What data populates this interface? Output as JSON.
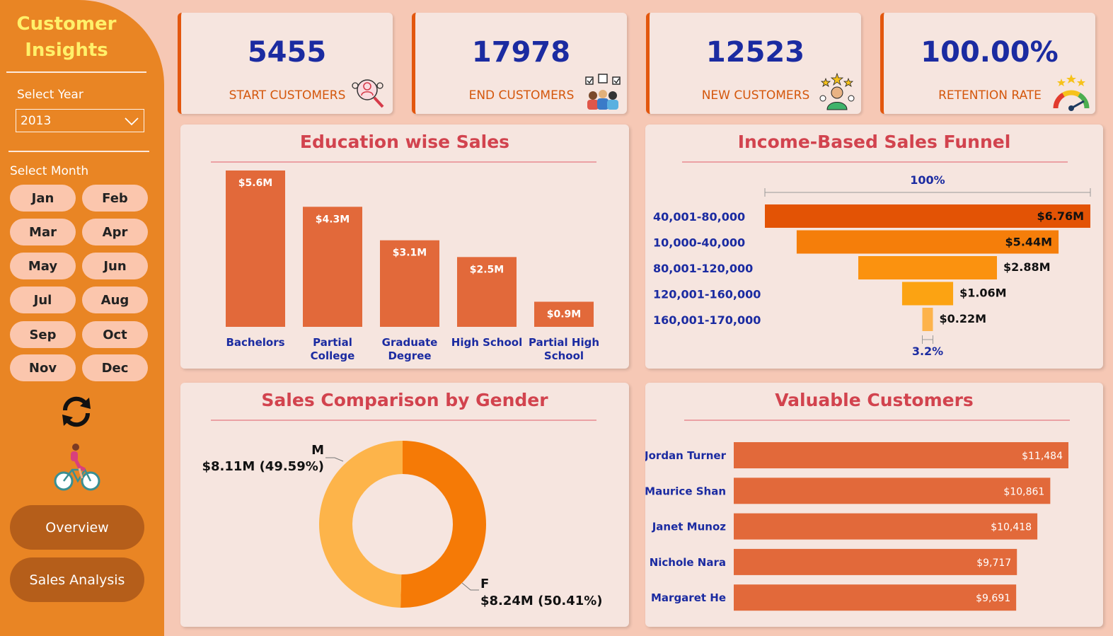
{
  "sidebar": {
    "title_line1": "Customer",
    "title_line2": "Insights",
    "year_label": "Select Year",
    "year_value": "2013",
    "month_label": "Select Month",
    "months": [
      "Jan",
      "Feb",
      "Mar",
      "Apr",
      "May",
      "Jun",
      "Jul",
      "Aug",
      "Sep",
      "Oct",
      "Nov",
      "Dec"
    ],
    "nav": [
      "Overview",
      "Sales Analysis"
    ]
  },
  "kpis": [
    {
      "value": "5455",
      "label": "START CUSTOMERS",
      "icon": "search-customer-icon"
    },
    {
      "value": "17978",
      "label": "END CUSTOMERS",
      "icon": "group-checklist-icon"
    },
    {
      "value": "12523",
      "label": "NEW CUSTOMERS",
      "icon": "star-customer-icon"
    },
    {
      "value": "100.00%",
      "label": "RETENTION RATE",
      "icon": "gauge-icon"
    }
  ],
  "panels": {
    "education": "Education wise Sales",
    "funnel": "Income-Based Sales Funnel",
    "gender": "Sales Comparison by Gender",
    "customers": "Valuable Customers"
  },
  "colors": {
    "bar": "#e2693a",
    "funnel": [
      "#e35305",
      "#f57e0a",
      "#fb920f",
      "#fca312",
      "#fdb34c"
    ],
    "donut_m": "#fdb44a",
    "donut_f": "#f57a06",
    "title": "#d2434e",
    "axis_text": "#1b2ba1"
  },
  "chart_data": [
    {
      "type": "bar",
      "title": "Education wise Sales",
      "categories": [
        "Bachelors",
        "Partial College",
        "Graduate Degree",
        "High School",
        "Partial High School"
      ],
      "values": [
        5.6,
        4.3,
        3.1,
        2.5,
        0.9
      ],
      "labels": [
        "$5.6M",
        "$4.3M",
        "$3.1M",
        "$2.5M",
        "$0.9M"
      ],
      "ylim": [
        0,
        5.6
      ]
    },
    {
      "type": "bar",
      "title": "Income-Based Sales Funnel",
      "categories": [
        "40,001-80,000",
        "10,000-40,000",
        "80,001-120,000",
        "120,001-160,000",
        "160,001-170,000"
      ],
      "values": [
        6.76,
        5.44,
        2.88,
        1.06,
        0.22
      ],
      "labels": [
        "$6.76M",
        "$5.44M",
        "$2.88M",
        "$1.06M",
        "$0.22M"
      ],
      "top_percent": "100%",
      "bottom_percent": "3.2%"
    },
    {
      "type": "pie",
      "title": "Sales Comparison by Gender",
      "categories": [
        "M",
        "F"
      ],
      "values": [
        8.11,
        8.24
      ],
      "labels": [
        "$8.11M (49.59%)",
        "$8.24M (50.41%)"
      ]
    },
    {
      "type": "bar",
      "title": "Valuable Customers",
      "categories": [
        "Jordan Turner",
        "Maurice Shan",
        "Janet Munoz",
        "Nichole Nara",
        "Margaret He"
      ],
      "values": [
        11484,
        10861,
        10418,
        9717,
        9691
      ],
      "labels": [
        "$11,484",
        "$10,861",
        "$10,418",
        "$9,717",
        "$9,691"
      ]
    }
  ]
}
